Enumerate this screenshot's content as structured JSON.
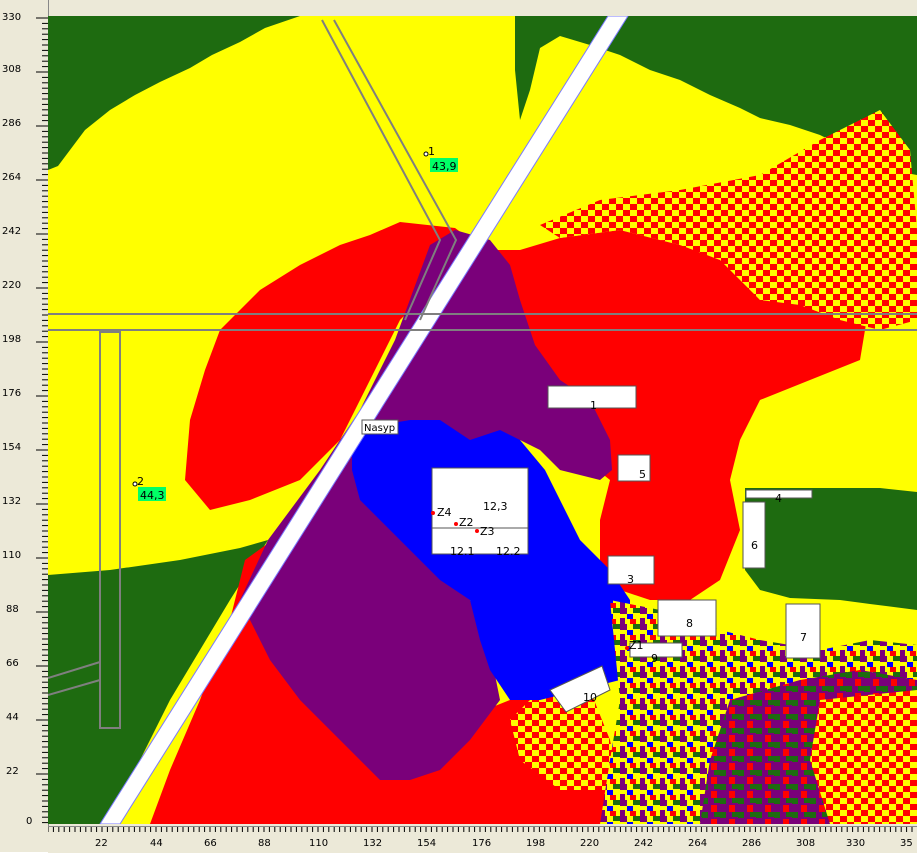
{
  "axes": {
    "y_ticks": [
      "330",
      "308",
      "286",
      "264",
      "242",
      "220",
      "198",
      "176",
      "154",
      "132",
      "110",
      "88",
      "66",
      "44",
      "22",
      "0"
    ],
    "x_ticks": [
      "22",
      "44",
      "66",
      "88",
      "110",
      "132",
      "154",
      "176",
      "198",
      "220",
      "242",
      "264",
      "286",
      "308",
      "330",
      "35"
    ]
  },
  "colors": {
    "green": "#1E6B10",
    "yellow": "#FFFF00",
    "red": "#FF0000",
    "purple": "#7A007A",
    "blue": "#0000FF",
    "white": "#FFFFFF",
    "line": "#7F7F7F"
  },
  "buildings": [
    {
      "id": "b1",
      "label": "1"
    },
    {
      "id": "b3",
      "label": "3"
    },
    {
      "id": "b4",
      "label": "4"
    },
    {
      "id": "b5",
      "label": "5"
    },
    {
      "id": "b6",
      "label": "6"
    },
    {
      "id": "b7",
      "label": "7"
    },
    {
      "id": "b8",
      "label": "8"
    },
    {
      "id": "b9",
      "label": "9"
    },
    {
      "id": "b10",
      "label": "10"
    }
  ],
  "block": {
    "labels": {
      "r1": "12,3",
      "r2": "12.1",
      "r3": "12.2"
    }
  },
  "measurement_points": [
    {
      "label": "1",
      "value": "43,9"
    },
    {
      "label": "2",
      "value": "44,3"
    }
  ],
  "sources": [
    "Z1",
    "Z2",
    "Z3",
    "Z4"
  ],
  "embankment_label": "Nasyp"
}
